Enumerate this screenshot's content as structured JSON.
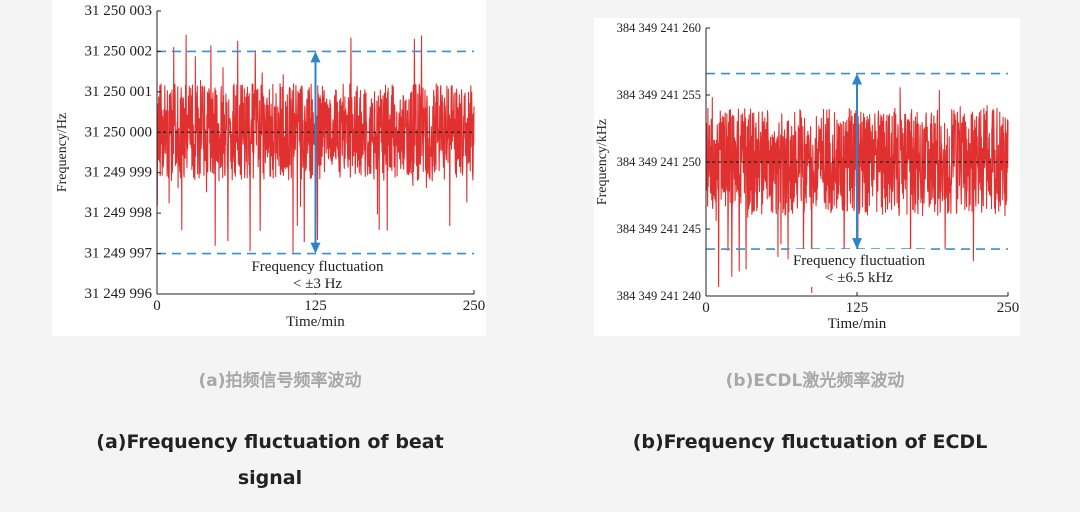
{
  "chart_data": [
    {
      "type": "line",
      "title": "",
      "xlabel": "Time/min",
      "ylabel": "Frequency/Hz",
      "xlim": [
        0,
        250
      ],
      "ylim": [
        31249996,
        31250003
      ],
      "x_ticks": [
        "0",
        "125",
        "250"
      ],
      "y_ticks": [
        "31 249 996",
        "31 249 997",
        "31 249 998",
        "31 249 999",
        "31 250 000",
        "31 250 001",
        "31 250 002",
        "31 250 003"
      ],
      "series": [
        {
          "color": "#e03030",
          "mean": 31250000,
          "noise_band": [
            31249999,
            31250001.4
          ],
          "note": "noisy trace over 0–250 min"
        }
      ],
      "reference_lines": {
        "center": 31250000,
        "upper_bound": 31250002,
        "lower_bound": 31249997
      },
      "arrow_x": 125,
      "annotation": [
        "Frequency fluctuation",
        "< ±3 Hz"
      ],
      "colors": {
        "trace": "#e03030",
        "bounds": "#3a8fd0",
        "arrow": "#2a86c8",
        "center": "#222222"
      }
    },
    {
      "type": "line",
      "title": "",
      "xlabel": "Time/min",
      "ylabel": "Frequency/kHz",
      "xlim": [
        0,
        250
      ],
      "ylim": [
        384349241240,
        384349241260
      ],
      "x_ticks": [
        "0",
        "125",
        "250"
      ],
      "y_ticks": [
        "384 349 241 240",
        "384 349 241 245",
        "384 349 241 250",
        "384 349 241 255",
        "384 349 241 260"
      ],
      "series": [
        {
          "color": "#e03030",
          "mean": 384349241250,
          "noise_band": [
            384349241246,
            384349241254
          ],
          "note": "noisy trace over 0–250 min"
        }
      ],
      "reference_lines": {
        "center": 384349241250,
        "upper_bound": 384349241256.6,
        "lower_bound": 384349241243.5
      },
      "arrow_x": 125,
      "annotation": [
        "Frequency fluctuation",
        "< ±6.5 kHz"
      ],
      "colors": {
        "trace": "#e03030",
        "bounds": "#3a8fd0",
        "arrow": "#2a86c8",
        "center": "#222222"
      }
    }
  ],
  "captions": {
    "a_cn": "(a)拍频信号频率波动",
    "b_cn": "(b)ECDL激光频率波动",
    "a_en_line1": "(a)Frequency fluctuation of beat",
    "a_en_line2": "signal",
    "b_en": "(b)Frequency fluctuation of ECDL"
  }
}
